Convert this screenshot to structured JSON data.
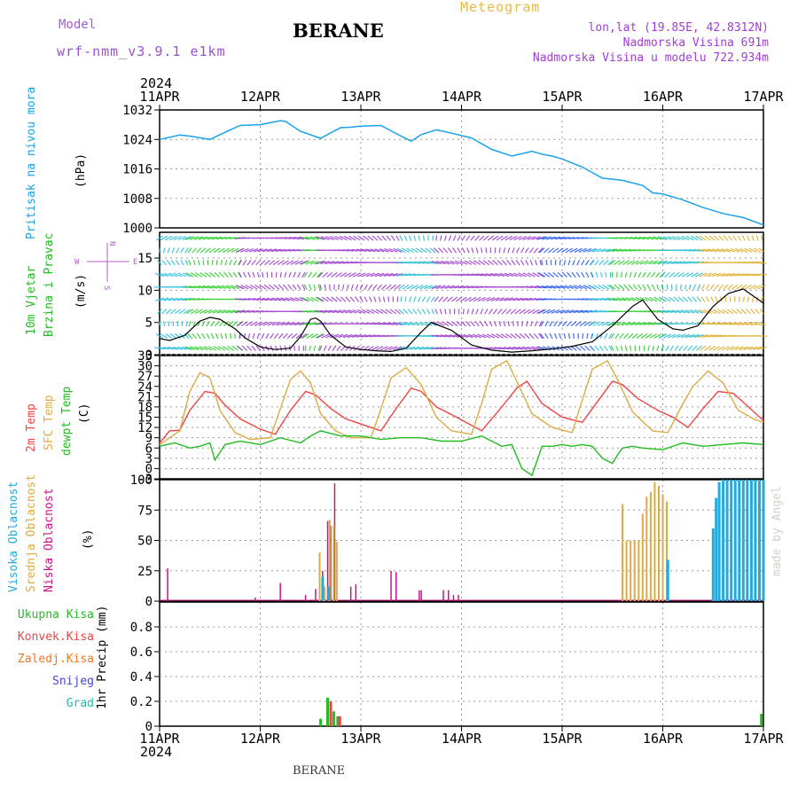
{
  "header": {
    "model_label": "Model",
    "model_name": "wrf-nmm_v3.9.1 e1km",
    "station": "BERANE",
    "product": "Meteogram",
    "lonlat": "lon,lat (19.85E, 42.8312N)",
    "elevation": "Nadmorska Visina 691m",
    "model_elevation": "Nadmorska Visina u modelu 722.934m"
  },
  "footer": {
    "station": "BERANE",
    "credit": "made by Angel"
  },
  "colors": {
    "pressure": "#1aa3e8",
    "wind_label": "#22bb22",
    "temp2m": "#ee4444",
    "sfc": "#ddaa44",
    "dew": "#22bb22",
    "high_cloud": "#22aadd",
    "mid_cloud": "#ddaa44",
    "low_cloud": "#cc1188",
    "total_precip": "#22bb22",
    "conv_precip": "#ee4444",
    "frozen_precip": "#ee7722",
    "snow": "#4444dd",
    "hail": "#22bbaa",
    "grid": "#999999"
  },
  "chart_data": [
    {
      "type": "line",
      "panel": "pressure",
      "ylabel_name": "Pritisak na nivou mora",
      "ylabel_unit": "(hPa)",
      "ylim": [
        1000,
        1032
      ],
      "yticks": [
        "1032",
        "1024",
        "1016",
        "1008",
        "1000"
      ],
      "xticks": [
        "11APR",
        "12APR",
        "13APR",
        "14APR",
        "15APR",
        "16APR",
        "17APR"
      ],
      "year": "2024",
      "grid": true,
      "series": [
        {
          "x": [
            0,
            0.2,
            0.3,
            0.5,
            0.6,
            0.8,
            1.0,
            1.2,
            1.25,
            1.4,
            1.6,
            1.7,
            1.8,
            1.9,
            2.0,
            2.2,
            2.35,
            2.5,
            2.6,
            2.75,
            2.9,
            3.1,
            3.3,
            3.5,
            3.7,
            3.8,
            3.9,
            4.0,
            4.2,
            4.4,
            4.5,
            4.6,
            4.8,
            4.9,
            5.0,
            5.2,
            5.4,
            5.6,
            5.8,
            6.0
          ],
          "values": [
            1024.0,
            1025.2,
            1024.9,
            1024.0,
            1025.3,
            1027.8,
            1028.0,
            1029.1,
            1028.9,
            1026.2,
            1024.3,
            1025.8,
            1027.2,
            1027.3,
            1027.6,
            1027.8,
            1025.6,
            1023.5,
            1025.3,
            1026.6,
            1025.7,
            1024.4,
            1021.3,
            1019.5,
            1020.8,
            1020.0,
            1019.5,
            1018.7,
            1016.5,
            1013.5,
            1013.2,
            1012.9,
            1011.5,
            1009.5,
            1009.2,
            1007.6,
            1005.5,
            1003.9,
            1002.8,
            1000.8
          ]
        }
      ]
    },
    {
      "type": "line",
      "panel": "wind",
      "ylabel_name": "10m Vjetar",
      "ylabel_name2": "Brzina i Pravac",
      "ylabel_unit": "(m/s)",
      "compass": {
        "n": "N",
        "s": "S",
        "w": "W",
        "e": "E"
      },
      "ylim": [
        0,
        19
      ],
      "yticks": [
        "15",
        "10",
        "5",
        "0"
      ],
      "grid": true,
      "series": [
        {
          "name": "speed",
          "x": [
            0,
            0.1,
            0.25,
            0.4,
            0.5,
            0.6,
            0.75,
            0.85,
            1.0,
            1.15,
            1.3,
            1.4,
            1.5,
            1.55,
            1.6,
            1.7,
            1.85,
            2.0,
            2.15,
            2.3,
            2.45,
            2.6,
            2.7,
            2.9,
            3.1,
            3.3,
            3.5,
            3.7,
            3.9,
            4.1,
            4.3,
            4.5,
            4.7,
            4.8,
            4.95,
            5.1,
            5.2,
            5.35,
            5.5,
            5.65,
            5.8,
            6.0
          ],
          "values": [
            2.5,
            2.2,
            3.0,
            5.2,
            5.8,
            5.5,
            4.0,
            2.6,
            1.2,
            0.8,
            1.0,
            2.8,
            5.5,
            5.7,
            5.2,
            3.0,
            1.2,
            0.8,
            0.6,
            0.5,
            1.0,
            3.5,
            5.0,
            3.8,
            1.5,
            0.7,
            0.4,
            0.6,
            0.9,
            1.3,
            2.0,
            4.5,
            7.5,
            8.5,
            5.5,
            4.0,
            3.8,
            4.5,
            7.5,
            9.5,
            10.2,
            8.0
          ]
        }
      ]
    },
    {
      "type": "line",
      "panel": "temperature",
      "ylabel_name": "2m Temp",
      "ylabel_name2": "SFC Temp",
      "ylabel_name3": "dewpt Temp",
      "ylabel_unit": "(C)",
      "ylim": [
        -3,
        33
      ],
      "yticks": [
        "33",
        "30",
        "27",
        "24",
        "21",
        "18",
        "15",
        "12",
        "9",
        "6",
        "3",
        "0",
        "-3"
      ],
      "grid": true,
      "series": [
        {
          "name": "2m Temp",
          "x": [
            0,
            0.1,
            0.2,
            0.3,
            0.45,
            0.55,
            0.65,
            0.8,
            1.0,
            1.15,
            1.3,
            1.45,
            1.55,
            1.7,
            1.85,
            2.0,
            2.2,
            2.35,
            2.5,
            2.6,
            2.75,
            2.95,
            3.2,
            3.4,
            3.55,
            3.65,
            3.8,
            4.0,
            4.2,
            4.35,
            4.5,
            4.6,
            4.75,
            4.95,
            5.1,
            5.25,
            5.4,
            5.55,
            5.7,
            5.85,
            6.0
          ],
          "values": [
            7.5,
            11.0,
            11.2,
            17.0,
            22.5,
            22.0,
            18.5,
            14.5,
            11.5,
            10.0,
            17.0,
            22.5,
            21.5,
            17.5,
            14.5,
            13.0,
            11.0,
            17.5,
            23.5,
            22.5,
            18.0,
            15.0,
            11.0,
            18.0,
            23.5,
            25.5,
            19.0,
            15.0,
            13.5,
            19.5,
            25.5,
            24.5,
            20.5,
            17.0,
            15.0,
            12.0,
            17.5,
            22.5,
            22.0,
            18.0,
            14.0
          ]
        },
        {
          "name": "SFC Temp",
          "x": [
            0,
            0.1,
            0.2,
            0.3,
            0.4,
            0.5,
            0.6,
            0.75,
            0.9,
            1.1,
            1.2,
            1.3,
            1.4,
            1.5,
            1.6,
            1.75,
            1.9,
            2.1,
            2.2,
            2.3,
            2.45,
            2.6,
            2.75,
            2.9,
            3.1,
            3.2,
            3.3,
            3.45,
            3.55,
            3.7,
            3.9,
            4.1,
            4.2,
            4.3,
            4.45,
            4.55,
            4.7,
            4.9,
            5.05,
            5.2,
            5.3,
            5.45,
            5.6,
            5.75,
            5.9,
            6.0
          ],
          "values": [
            7.0,
            9.0,
            11.0,
            22.5,
            28.0,
            26.5,
            17.0,
            10.5,
            8.5,
            9.0,
            17.5,
            26.0,
            28.5,
            25.0,
            16.0,
            11.0,
            9.0,
            9.0,
            17.5,
            26.5,
            29.5,
            24.5,
            15.0,
            11.0,
            10.0,
            19.0,
            29.0,
            31.5,
            25.5,
            16.0,
            12.0,
            10.5,
            20.0,
            29.0,
            31.5,
            26.0,
            16.5,
            11.0,
            10.5,
            19.0,
            24.0,
            28.5,
            25.0,
            17.0,
            14.5,
            13.5
          ]
        },
        {
          "name": "dewpt Temp",
          "x": [
            0,
            0.15,
            0.3,
            0.4,
            0.5,
            0.55,
            0.65,
            0.8,
            1.0,
            1.2,
            1.4,
            1.5,
            1.6,
            1.8,
            2.0,
            2.2,
            2.4,
            2.6,
            2.8,
            3.0,
            3.2,
            3.4,
            3.5,
            3.6,
            3.7,
            3.8,
            3.9,
            4.0,
            4.1,
            4.2,
            4.3,
            4.4,
            4.5,
            4.55,
            4.6,
            4.7,
            4.8,
            5.0,
            5.2,
            5.4,
            5.6,
            5.8,
            6.0
          ],
          "values": [
            6.5,
            7.5,
            6.0,
            6.5,
            7.5,
            2.5,
            7.0,
            8.0,
            7.0,
            9.0,
            7.5,
            9.5,
            11.0,
            9.5,
            9.5,
            8.5,
            9.0,
            9.0,
            8.0,
            8.0,
            9.5,
            6.5,
            7.0,
            0.0,
            -2.0,
            6.5,
            6.5,
            7.0,
            6.5,
            7.0,
            6.5,
            3.0,
            1.5,
            4.0,
            6.0,
            6.5,
            6.0,
            5.5,
            7.5,
            6.5,
            7.0,
            7.5,
            7.0
          ]
        }
      ]
    },
    {
      "type": "bar",
      "panel": "cloud",
      "ylabel_name": "Visoka Oblacnost",
      "ylabel_name2": "Srednja Oblacnost",
      "ylabel_name3": "Niska Oblacnost",
      "ylabel_unit": "(%)",
      "ylim": [
        0,
        100
      ],
      "yticks": [
        "100",
        "75",
        "50",
        "25",
        "0"
      ],
      "grid": true,
      "series": [
        {
          "name": "Niska Oblacnost",
          "x": [
            0.08,
            0.95,
            1.2,
            1.45,
            1.55,
            1.62,
            1.67,
            1.7,
            1.74,
            1.9,
            1.95,
            2.3,
            2.35,
            2.58,
            2.6,
            2.82,
            2.87,
            2.92,
            2.97
          ],
          "values": [
            27,
            3,
            15,
            5,
            10,
            25,
            66,
            62,
            97,
            12,
            14,
            25,
            24,
            9,
            9,
            9,
            9,
            5,
            5
          ]
        },
        {
          "name": "Srednja Oblacnost",
          "x": [
            1.59,
            1.64,
            1.69,
            1.73,
            1.76,
            4.6,
            4.64,
            4.68,
            4.72,
            4.76,
            4.8,
            4.84,
            4.88,
            4.92,
            4.96,
            5.0,
            5.04
          ],
          "values": [
            40,
            12,
            67,
            62,
            49,
            80,
            50,
            50,
            50,
            50,
            72,
            86,
            90,
            98,
            95,
            88,
            82
          ]
        },
        {
          "name": "Visoka Oblacnost",
          "x": [
            1.62,
            1.68,
            5.05,
            5.5,
            5.53,
            5.56,
            5.6,
            5.64,
            5.68,
            5.72,
            5.76,
            5.8,
            5.84,
            5.88,
            5.92,
            5.96,
            6.0
          ],
          "values": [
            20,
            12,
            34,
            60,
            85,
            98,
            100,
            100,
            100,
            100,
            100,
            100,
            100,
            100,
            100,
            100,
            100
          ]
        }
      ]
    },
    {
      "type": "bar",
      "panel": "precip",
      "ylabel_unit": "1hr Precip (mm)",
      "legend": [
        "Ukupna Kisa",
        "Konvek.Kisa",
        "Zaledj.Kisa",
        "Snijeg",
        "Grad"
      ],
      "ylim": [
        0,
        1.0
      ],
      "yticks": [
        "0.8",
        "0.6",
        "0.4",
        "0.2",
        "0"
      ],
      "xticks": [
        "11APR",
        "12APR",
        "13APR",
        "14APR",
        "15APR",
        "16APR",
        "17APR"
      ],
      "year": "2024",
      "grid": true,
      "series": [
        {
          "name": "Ukupna Kisa",
          "x": [
            1.6,
            1.67,
            1.73,
            1.77,
            5.98
          ],
          "values": [
            0.06,
            0.23,
            0.12,
            0.08,
            0.1
          ]
        },
        {
          "name": "Konvek.Kisa",
          "x": [
            1.7,
            1.79
          ],
          "values": [
            0.2,
            0.08
          ]
        }
      ]
    }
  ]
}
